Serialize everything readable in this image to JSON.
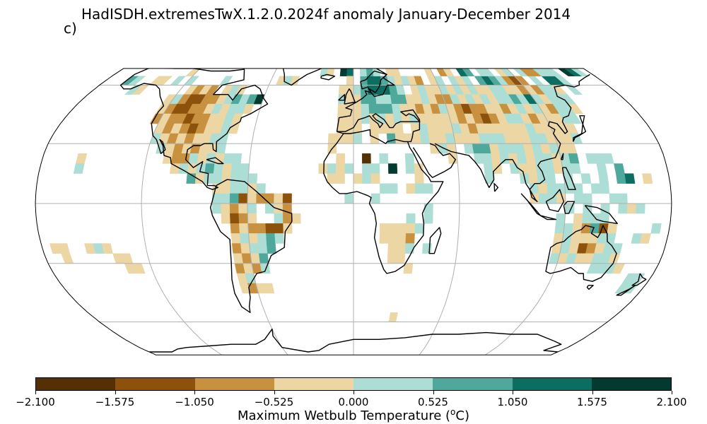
{
  "panel_label": "c)",
  "title": "HadISDH.extremesTwX.1.2.0.2024f anomaly January-December 2014",
  "colorbar": {
    "label": "Maximum Wetbulb Temperature (°C)",
    "ticks": [
      "−2.100",
      "−1.575",
      "−1.050",
      "−0.525",
      "0.000",
      "0.525",
      "1.050",
      "1.575",
      "2.100"
    ],
    "colors": [
      "#543005",
      "#8c510a",
      "#c8913f",
      "#ecd6a4",
      "#acded6",
      "#4ea99c",
      "#0c6d61",
      "#023a30"
    ]
  },
  "map": {
    "projection": "robinson",
    "gridlines": true,
    "land_color": "#ffffff",
    "coast_color": "#000000",
    "grid_color": "#b0b0b0"
  }
}
